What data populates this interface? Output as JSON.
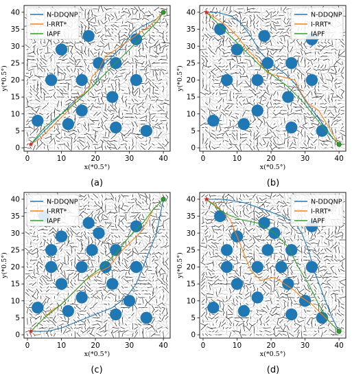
{
  "figure": {
    "panel_captions": [
      "(a)",
      "(b)",
      "(c)",
      "(d)"
    ]
  },
  "chart_data": [
    {
      "type": "scatter",
      "panel": "(a)",
      "xlabel": "x(*0.5°)",
      "ylabel": "y(*0.5°)",
      "xlim": [
        -1,
        42
      ],
      "ylim": [
        -1,
        42
      ],
      "xticks": [
        0,
        10,
        20,
        30,
        40
      ],
      "yticks": [
        0,
        5,
        10,
        15,
        20,
        25,
        30,
        35,
        40
      ],
      "legend_position": "top-left",
      "start": [
        1,
        1
      ],
      "goal": [
        40,
        40
      ],
      "obstacles": [
        [
          18,
          33
        ],
        [
          10,
          29
        ],
        [
          21,
          25
        ],
        [
          26,
          25
        ],
        [
          32,
          32
        ],
        [
          7,
          20
        ],
        [
          16,
          20
        ],
        [
          32,
          20
        ],
        [
          25,
          15
        ],
        [
          16,
          11
        ],
        [
          3,
          8
        ],
        [
          12,
          7
        ],
        [
          26,
          6
        ],
        [
          35,
          5
        ]
      ],
      "series": [
        {
          "name": "N-DDQNP",
          "color": "#1f77b4",
          "x": [
            1,
            5,
            10,
            14,
            17,
            20,
            22,
            25,
            28,
            31,
            34,
            36,
            38,
            40
          ],
          "y": [
            1,
            5,
            10,
            14,
            16,
            19,
            24,
            27,
            30,
            34,
            36,
            37,
            38,
            40
          ]
        },
        {
          "name": "I-RRT*",
          "color": "#ff7f0e",
          "x": [
            1,
            4,
            8,
            12,
            15,
            18,
            19,
            21,
            23,
            26,
            29,
            33,
            36,
            38,
            40
          ],
          "y": [
            1,
            3,
            7,
            11,
            15,
            17,
            21,
            23,
            27,
            29,
            31,
            34,
            36,
            38,
            40
          ]
        },
        {
          "name": "IAPF",
          "color": "#2ca02c",
          "x": [
            1,
            5,
            10,
            15,
            19,
            23,
            27,
            31,
            35,
            38,
            40
          ],
          "y": [
            1,
            6,
            10,
            14,
            18,
            22,
            26,
            30,
            34,
            37,
            40
          ]
        }
      ]
    },
    {
      "type": "scatter",
      "panel": "(b)",
      "xlabel": "x(*0.5°)",
      "ylabel": "y(*0.5°)",
      "xlim": [
        -1,
        42
      ],
      "ylim": [
        -1,
        42
      ],
      "xticks": [
        0,
        10,
        20,
        30,
        40
      ],
      "yticks": [
        0,
        5,
        10,
        15,
        20,
        25,
        30,
        35,
        40
      ],
      "legend_position": "top-right",
      "start": [
        1,
        40
      ],
      "goal": [
        40,
        1
      ],
      "obstacles": [
        [
          5,
          35
        ],
        [
          18,
          33
        ],
        [
          10,
          29
        ],
        [
          32,
          32
        ],
        [
          19,
          25
        ],
        [
          26,
          25
        ],
        [
          7,
          20
        ],
        [
          16,
          20
        ],
        [
          32,
          20
        ],
        [
          25,
          15
        ],
        [
          16,
          11
        ],
        [
          3,
          8
        ],
        [
          12,
          7
        ],
        [
          26,
          6
        ],
        [
          35,
          5
        ]
      ],
      "series": [
        {
          "name": "N-DDQNP",
          "color": "#1f77b4",
          "x": [
            1,
            4,
            8,
            11,
            14,
            17,
            21,
            24,
            27,
            30,
            33,
            36,
            38,
            40
          ],
          "y": [
            40,
            40,
            39,
            37,
            33,
            28,
            24,
            22,
            19,
            14,
            10,
            6,
            3,
            1
          ]
        },
        {
          "name": "I-RRT*",
          "color": "#ff7f0e",
          "x": [
            1,
            4,
            7,
            10,
            13,
            16,
            19,
            23,
            27,
            29,
            31,
            34,
            37,
            40
          ],
          "y": [
            40,
            38,
            36,
            33,
            29,
            26,
            22,
            21,
            20,
            16,
            13,
            11,
            6,
            1
          ]
        },
        {
          "name": "IAPF",
          "color": "#2ca02c",
          "x": [
            1,
            5,
            9,
            13,
            17,
            21,
            25,
            29,
            33,
            37,
            40
          ],
          "y": [
            40,
            36,
            32,
            28,
            24,
            21,
            18,
            14,
            9,
            4,
            1
          ]
        }
      ]
    },
    {
      "type": "scatter",
      "panel": "(c)",
      "xlabel": "x(*0.5°)",
      "ylabel": "y(*0.5°)",
      "xlim": [
        -1,
        42
      ],
      "ylim": [
        -1,
        42
      ],
      "xticks": [
        0,
        10,
        20,
        30,
        40
      ],
      "yticks": [
        0,
        5,
        10,
        15,
        20,
        25,
        30,
        35,
        40
      ],
      "legend_position": "top-left",
      "start": [
        1,
        1
      ],
      "goal": [
        40,
        40
      ],
      "obstacles": [
        [
          5,
          35
        ],
        [
          18,
          33
        ],
        [
          10,
          29
        ],
        [
          21,
          30
        ],
        [
          32,
          32
        ],
        [
          7,
          25
        ],
        [
          19,
          25
        ],
        [
          26,
          25
        ],
        [
          7,
          20
        ],
        [
          16,
          20
        ],
        [
          23,
          20
        ],
        [
          32,
          20
        ],
        [
          10,
          15
        ],
        [
          25,
          15
        ],
        [
          16,
          11
        ],
        [
          30,
          10
        ],
        [
          3,
          8
        ],
        [
          12,
          7
        ],
        [
          26,
          6
        ],
        [
          35,
          5
        ]
      ],
      "series": [
        {
          "name": "N-DDQNP",
          "color": "#1f77b4",
          "x": [
            1,
            6,
            10,
            15,
            20,
            25,
            29,
            32,
            34,
            36,
            38,
            39,
            40
          ],
          "y": [
            1,
            1,
            2,
            4,
            6,
            8,
            11,
            15,
            20,
            25,
            30,
            35,
            40
          ]
        },
        {
          "name": "I-RRT*",
          "color": "#ff7f0e",
          "x": [
            1,
            4,
            7,
            10,
            14,
            17,
            20,
            24,
            27,
            30,
            33,
            35,
            37,
            40
          ],
          "y": [
            1,
            4,
            7,
            9,
            13,
            16,
            18,
            20,
            24,
            27,
            30,
            33,
            37,
            40
          ]
        },
        {
          "name": "IAPF",
          "color": "#2ca02c",
          "x": [
            1,
            5,
            10,
            14,
            18,
            22,
            26,
            30,
            34,
            37,
            40
          ],
          "y": [
            1,
            5,
            9,
            13,
            17,
            20,
            24,
            29,
            33,
            37,
            40
          ]
        }
      ]
    },
    {
      "type": "scatter",
      "panel": "(d)",
      "xlabel": "x(*0.5°)",
      "ylabel": "y(*0.5°)",
      "xlim": [
        -1,
        42
      ],
      "ylim": [
        -1,
        42
      ],
      "xticks": [
        0,
        10,
        20,
        30,
        40
      ],
      "yticks": [
        0,
        5,
        10,
        15,
        20,
        25,
        30,
        35,
        40
      ],
      "legend_position": "top-right",
      "start": [
        1,
        40
      ],
      "goal": [
        40,
        1
      ],
      "obstacles": [
        [
          5,
          35
        ],
        [
          18,
          33
        ],
        [
          10,
          29
        ],
        [
          21,
          30
        ],
        [
          32,
          32
        ],
        [
          7,
          25
        ],
        [
          19,
          25
        ],
        [
          26,
          25
        ],
        [
          7,
          20
        ],
        [
          16,
          20
        ],
        [
          23,
          20
        ],
        [
          32,
          20
        ],
        [
          10,
          15
        ],
        [
          25,
          15
        ],
        [
          16,
          11
        ],
        [
          30,
          10
        ],
        [
          3,
          8
        ],
        [
          12,
          7
        ],
        [
          26,
          6
        ],
        [
          35,
          5
        ]
      ],
      "series": [
        {
          "name": "N-DDQNP",
          "color": "#1f77b4",
          "x": [
            1,
            6,
            12,
            18,
            23,
            27,
            29,
            31,
            33,
            36,
            38,
            40
          ],
          "y": [
            40,
            40,
            39,
            37,
            35,
            33,
            30,
            25,
            18,
            10,
            5,
            1
          ]
        },
        {
          "name": "I-RRT*",
          "color": "#ff7f0e",
          "x": [
            1,
            4,
            8,
            10,
            12,
            14,
            17,
            21,
            24,
            27,
            29,
            32,
            35,
            38,
            40
          ],
          "y": [
            40,
            38,
            34,
            29,
            24,
            19,
            16,
            17,
            15,
            13,
            11,
            9,
            6,
            3,
            1
          ]
        },
        {
          "name": "IAPF",
          "color": "#2ca02c",
          "x": [
            1,
            6,
            11,
            16,
            21,
            25,
            28,
            31,
            34,
            37,
            40
          ],
          "y": [
            40,
            36,
            34,
            33,
            30,
            26,
            20,
            15,
            9,
            4,
            1
          ]
        }
      ]
    }
  ]
}
